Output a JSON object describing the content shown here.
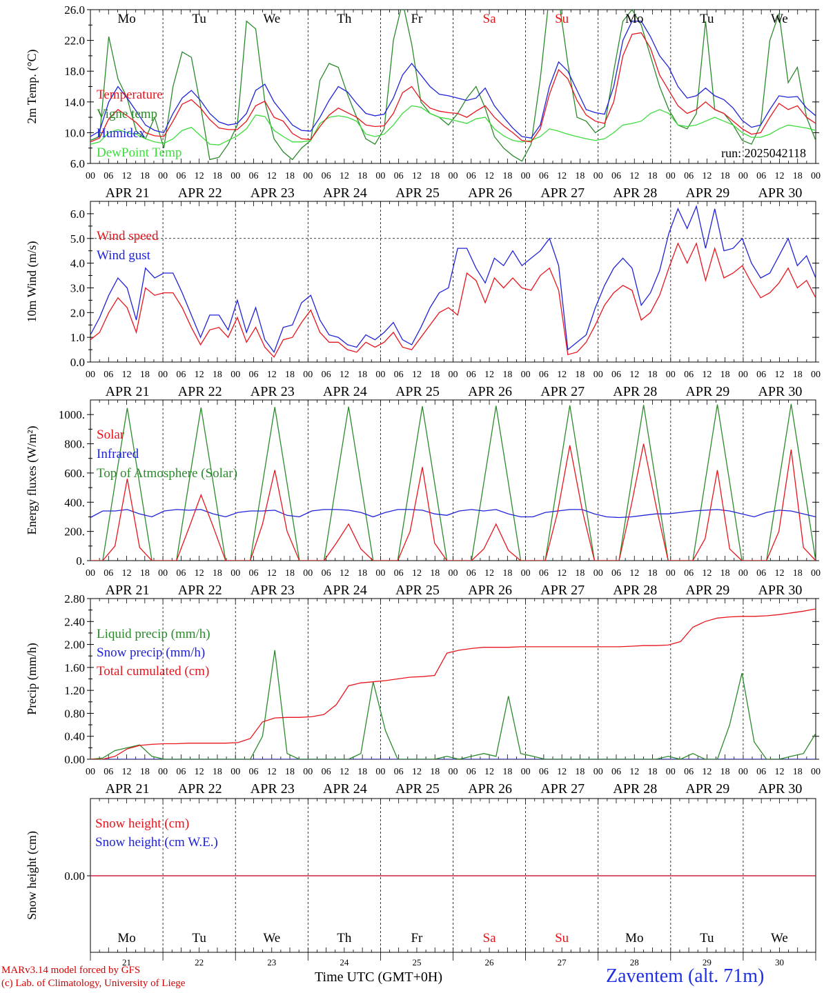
{
  "colors": {
    "red": "#e8141c",
    "green": "#2a8a2a",
    "blue": "#1f22d8",
    "lightgreen": "#3cdc3c",
    "weekday": "#000000",
    "weekend": "#e8141c",
    "location": "#2030e0"
  },
  "days": [
    "Mo",
    "Tu",
    "We",
    "Th",
    "Fr",
    "Sa",
    "Su",
    "Mo",
    "Tu",
    "We"
  ],
  "weekend_flags": [
    false,
    false,
    false,
    false,
    false,
    true,
    true,
    false,
    false,
    false
  ],
  "date_labels": [
    "APR 21",
    "APR 22",
    "APR 23",
    "APR 24",
    "APR 25",
    "APR 26",
    "APR 27",
    "APR 28",
    "APR 29",
    "APR 30"
  ],
  "day_numbers": [
    "21",
    "22",
    "23",
    "24",
    "25",
    "26",
    "27",
    "28",
    "29",
    "30"
  ],
  "hour_ticks": [
    "00",
    "06",
    "12",
    "18"
  ],
  "footer": {
    "model": "MARv3.14 model forced by GFS",
    "copyright": "(c) Lab. of Climatology, University of Liege",
    "time_axis": "Time UTC (GMT+0H)",
    "location": "Zaventem (alt. 71m)"
  },
  "chart_data": [
    {
      "id": "temp",
      "type": "line",
      "ylabel": "2m Temp. (°C)",
      "ylim": [
        6,
        26
      ],
      "yticks": [
        "6.0",
        "10.0",
        "14.0",
        "18.0",
        "22.0",
        "26.0"
      ],
      "run_label": "run: 2025042118",
      "grid": "vertical dashed at day boundaries",
      "x_unit": "hours since APR 21 00 UTC, 3-hourly",
      "series": [
        {
          "name": "Temperature",
          "color": "red",
          "values": [
            8.8,
            9.3,
            11.8,
            13.0,
            12.2,
            11.3,
            10.0,
            9.6,
            9.5,
            11.5,
            13.7,
            14.3,
            13.2,
            11.7,
            10.6,
            10.4,
            10.4,
            11.5,
            13.5,
            14.1,
            12.0,
            11.5,
            9.9,
            9.2,
            9.1,
            10.8,
            12.3,
            13.2,
            12.6,
            12.0,
            11.0,
            10.8,
            10.9,
            12.5,
            15.2,
            16.0,
            14.3,
            13.2,
            12.8,
            12.6,
            12.5,
            12.0,
            12.8,
            13.5,
            12.0,
            10.9,
            10.0,
            9.0,
            8.8,
            10.5,
            15.0,
            18.2,
            17.0,
            14.2,
            12.3,
            11.5,
            11.2,
            14.0,
            20.0,
            22.8,
            23.0,
            21.0,
            17.5,
            15.5,
            13.5,
            12.5,
            13.0,
            14.0,
            13.0,
            12.5,
            11.5,
            10.5,
            9.8,
            10.0,
            12.0,
            13.8,
            13.0,
            13.5,
            12.0,
            11.2
          ]
        },
        {
          "name": "Vigne temp",
          "color": "green",
          "values": [
            9.0,
            9.5,
            22.5,
            17.0,
            14.5,
            10.2,
            9.2,
            12.0,
            8.0,
            16.0,
            20.5,
            19.8,
            13.5,
            6.5,
            6.8,
            8.5,
            11.0,
            24.5,
            23.5,
            14.0,
            9.2,
            7.5,
            6.5,
            8.0,
            9.0,
            16.8,
            19.0,
            18.5,
            15.0,
            12.0,
            9.2,
            8.5,
            10.5,
            22.0,
            27.0,
            21.5,
            14.0,
            12.5,
            12.0,
            11.0,
            12.5,
            14.5,
            16.0,
            13.2,
            9.5,
            8.0,
            7.0,
            6.3,
            8.5,
            17.0,
            28.0,
            27.5,
            19.0,
            12.0,
            11.5,
            10.0,
            10.8,
            18.0,
            24.5,
            26.0,
            24.0,
            20.0,
            16.0,
            13.0,
            11.0,
            10.5,
            12.5,
            24.5,
            13.0,
            12.5,
            11.0,
            9.0,
            8.5,
            11.0,
            22.0,
            25.5,
            16.5,
            18.5,
            12.0,
            9.0
          ]
        },
        {
          "name": "Humidex",
          "color": "blue",
          "values": [
            9.5,
            10.2,
            14.0,
            16.0,
            14.5,
            12.8,
            11.0,
            10.3,
            10.0,
            12.5,
            14.5,
            15.5,
            14.2,
            12.5,
            11.4,
            11.0,
            11.2,
            12.5,
            15.5,
            16.3,
            14.0,
            12.5,
            11.0,
            10.3,
            10.2,
            12.0,
            14.2,
            16.0,
            15.3,
            13.8,
            12.5,
            12.2,
            12.4,
            14.5,
            17.5,
            19.0,
            17.5,
            16.0,
            15.0,
            14.8,
            14.5,
            14.2,
            14.5,
            15.8,
            13.5,
            12.0,
            10.6,
            9.5,
            9.3,
            11.0,
            16.0,
            19.2,
            18.0,
            15.5,
            13.0,
            12.6,
            12.4,
            16.0,
            22.0,
            24.5,
            24.5,
            22.5,
            20.0,
            18.5,
            16.0,
            14.5,
            14.8,
            15.8,
            14.8,
            14.3,
            13.2,
            11.6,
            10.7,
            11.0,
            13.0,
            14.8,
            14.6,
            14.7,
            13.2,
            12.2
          ]
        },
        {
          "name": "DewPoint Temp",
          "color": "lightgreen",
          "values": [
            8.5,
            8.8,
            10.0,
            10.4,
            10.0,
            9.8,
            9.2,
            8.8,
            8.6,
            9.2,
            10.3,
            10.7,
            9.6,
            8.5,
            8.4,
            9.0,
            9.6,
            10.5,
            12.3,
            12.1,
            10.3,
            9.5,
            8.8,
            8.8,
            9.0,
            11.2,
            12.0,
            12.2,
            12.0,
            11.5,
            9.8,
            9.5,
            9.8,
            11.0,
            12.5,
            13.5,
            13.3,
            12.5,
            12.0,
            11.8,
            11.5,
            11.2,
            11.8,
            12.0,
            10.5,
            9.6,
            9.0,
            8.8,
            9.0,
            9.5,
            10.5,
            10.2,
            9.8,
            9.5,
            9.2,
            9.0,
            9.2,
            10.0,
            11.0,
            11.2,
            11.5,
            12.5,
            13.0,
            12.5,
            11.0,
            10.8,
            11.0,
            11.5,
            12.0,
            11.5,
            11.0,
            10.0,
            9.4,
            9.4,
            9.8,
            10.5,
            11.0,
            10.8,
            10.6,
            10.3
          ]
        }
      ]
    },
    {
      "id": "wind",
      "type": "line",
      "ylabel": "10m Wind (m/s)",
      "ylim": [
        0,
        6.5
      ],
      "yticks": [
        "0.0",
        "1.0",
        "2.0",
        "3.0",
        "4.0",
        "5.0",
        "6.0"
      ],
      "reference_line": 5.0,
      "x_unit": "hours since APR 21 00 UTC, 3-hourly",
      "series": [
        {
          "name": "Wind speed",
          "color": "red",
          "values": [
            0.9,
            1.2,
            2.0,
            2.6,
            2.2,
            1.2,
            3.0,
            2.7,
            2.8,
            2.8,
            2.2,
            1.4,
            0.7,
            1.3,
            1.4,
            1.0,
            1.8,
            0.8,
            1.4,
            0.6,
            0.2,
            0.9,
            1.0,
            1.6,
            2.1,
            1.2,
            0.8,
            0.8,
            0.5,
            0.4,
            0.8,
            0.6,
            0.8,
            1.2,
            0.6,
            0.5,
            1.0,
            1.5,
            2.0,
            2.2,
            1.9,
            3.6,
            3.3,
            2.4,
            3.4,
            3.0,
            3.4,
            3.0,
            2.9,
            3.5,
            3.8,
            2.9,
            0.3,
            0.4,
            0.8,
            1.5,
            2.3,
            2.8,
            3.1,
            2.9,
            1.7,
            2.0,
            2.7,
            3.8,
            4.8,
            4.0,
            4.8,
            3.3,
            4.6,
            3.4,
            3.6,
            3.9,
            3.2,
            2.6,
            2.8,
            3.2,
            3.8,
            3.0,
            3.3,
            2.6
          ]
        },
        {
          "name": "Wind gust",
          "color": "blue",
          "values": [
            1.1,
            1.8,
            2.7,
            3.4,
            3.0,
            1.7,
            3.8,
            3.4,
            3.6,
            3.6,
            2.8,
            1.9,
            1.0,
            1.9,
            1.9,
            1.3,
            2.5,
            1.2,
            2.2,
            0.9,
            0.4,
            1.4,
            1.5,
            2.4,
            2.7,
            1.7,
            1.1,
            1.0,
            0.7,
            0.6,
            1.1,
            0.9,
            1.2,
            1.6,
            0.9,
            0.7,
            1.4,
            2.2,
            2.8,
            3.0,
            4.6,
            4.6,
            3.8,
            3.2,
            4.2,
            3.9,
            4.5,
            3.9,
            4.2,
            4.5,
            5.0,
            3.9,
            0.5,
            0.8,
            1.1,
            2.2,
            3.1,
            3.8,
            4.2,
            3.8,
            2.3,
            2.8,
            3.7,
            5.2,
            6.2,
            5.4,
            6.3,
            4.6,
            6.2,
            4.5,
            4.6,
            5.0,
            4.0,
            3.4,
            3.6,
            4.3,
            5.0,
            3.9,
            4.3,
            3.4
          ]
        }
      ]
    },
    {
      "id": "energy",
      "type": "line",
      "ylabel": "Energy fluxes (W/m²)",
      "ylim": [
        0,
        1100
      ],
      "yticks": [
        "0.",
        "200.",
        "400.",
        "600.",
        "800.",
        "1000."
      ],
      "x_unit": "hours since APR 21 00 UTC, 3-hourly",
      "series": [
        {
          "name": "Solar",
          "color": "red",
          "values": [
            0,
            0,
            100,
            560,
            90,
            0,
            0,
            0,
            220,
            450,
            230,
            0,
            0,
            0,
            250,
            620,
            200,
            0,
            0,
            0,
            120,
            250,
            80,
            0,
            0,
            0,
            200,
            640,
            120,
            0,
            0,
            0,
            80,
            250,
            70,
            0,
            0,
            0,
            330,
            790,
            350,
            0,
            0,
            0,
            380,
            800,
            380,
            0,
            0,
            0,
            150,
            620,
            80,
            0,
            0,
            0,
            200,
            760,
            90,
            0
          ]
        },
        {
          "name": "Infrared",
          "color": "blue",
          "values": [
            295,
            340,
            340,
            350,
            320,
            300,
            340,
            350,
            345,
            350,
            320,
            300,
            330,
            340,
            340,
            345,
            310,
            300,
            340,
            350,
            350,
            345,
            330,
            300,
            330,
            350,
            350,
            345,
            320,
            310,
            340,
            350,
            340,
            350,
            320,
            300,
            300,
            330,
            340,
            350,
            350,
            320,
            300,
            295,
            300,
            310,
            320,
            320,
            330,
            340,
            345,
            350,
            340,
            320,
            300,
            330,
            345,
            340,
            320,
            300
          ]
        },
        {
          "name": "Top of Atmosphere (Solar)",
          "color": "green",
          "values": [
            0,
            0,
            525,
            1045,
            525,
            0,
            0,
            0,
            527,
            1048,
            527,
            0,
            0,
            0,
            528,
            1051,
            528,
            0,
            0,
            0,
            530,
            1054,
            530,
            0,
            0,
            0,
            531,
            1057,
            531,
            0,
            0,
            0,
            532,
            1060,
            532,
            0,
            0,
            0,
            534,
            1063,
            534,
            0,
            0,
            0,
            535,
            1066,
            535,
            0,
            0,
            0,
            537,
            1069,
            537,
            0,
            0,
            0,
            538,
            1072,
            538,
            0
          ]
        }
      ]
    },
    {
      "id": "precip",
      "type": "line",
      "ylabel": "Precip (mm/h)",
      "ylim": [
        0,
        2.8
      ],
      "yticks": [
        "0.00",
        "0.40",
        "0.80",
        "1.20",
        "1.60",
        "2.00",
        "2.40",
        "2.80"
      ],
      "x_unit": "hours since APR 21 00 UTC, 3-hourly",
      "series": [
        {
          "name": "Liquid precip (mm/h)",
          "color": "green",
          "values": [
            0,
            0.02,
            0.15,
            0.2,
            0.25,
            0.05,
            0,
            0,
            0,
            0,
            0,
            0,
            0,
            0,
            0.4,
            1.9,
            0.1,
            0,
            0,
            0,
            0,
            0,
            0.1,
            1.35,
            0.5,
            0,
            0,
            0,
            0,
            0.05,
            0,
            0.05,
            0.1,
            0.05,
            1.1,
            0.1,
            0.05,
            0,
            0,
            0,
            0,
            0,
            0,
            0,
            0,
            0,
            0,
            0.05,
            0,
            0.1,
            0,
            0,
            0.6,
            1.5,
            0.3,
            0,
            0,
            0.05,
            0.1,
            0.45
          ]
        },
        {
          "name": "Snow precip (mm/h)",
          "color": "blue",
          "values": [
            0,
            0,
            0,
            0,
            0,
            0,
            0,
            0,
            0,
            0,
            0,
            0,
            0,
            0,
            0,
            0,
            0,
            0,
            0,
            0,
            0,
            0,
            0,
            0,
            0,
            0,
            0,
            0,
            0,
            0,
            0,
            0,
            0,
            0,
            0,
            0,
            0,
            0,
            0,
            0,
            0,
            0,
            0,
            0,
            0,
            0,
            0,
            0,
            0,
            0,
            0,
            0,
            0,
            0,
            0,
            0,
            0,
            0,
            0,
            0
          ]
        },
        {
          "name": "Total cumulated (cm)",
          "color": "red",
          "values": [
            0,
            0,
            0.05,
            0.18,
            0.24,
            0.26,
            0.27,
            0.27,
            0.28,
            0.28,
            0.28,
            0.28,
            0.29,
            0.36,
            0.65,
            0.72,
            0.73,
            0.73,
            0.74,
            0.78,
            0.95,
            1.28,
            1.33,
            1.35,
            1.37,
            1.4,
            1.43,
            1.44,
            1.46,
            1.85,
            1.9,
            1.93,
            1.95,
            1.95,
            1.95,
            1.96,
            1.96,
            1.96,
            1.96,
            1.96,
            1.96,
            1.96,
            1.96,
            1.96,
            1.97,
            1.98,
            1.98,
            1.99,
            2.05,
            2.3,
            2.4,
            2.46,
            2.48,
            2.49,
            2.49,
            2.5,
            2.52,
            2.55,
            2.58,
            2.62
          ]
        }
      ]
    },
    {
      "id": "snow",
      "type": "line",
      "ylabel": "Snow height (cm)",
      "yticks": [
        "0.00"
      ],
      "x_unit": "hours since APR 21 00 UTC",
      "series": [
        {
          "name": "Snow height (cm)",
          "color": "red",
          "values": [
            0,
            0
          ]
        },
        {
          "name": "Snow height (cm W.E.)",
          "color": "blue",
          "values": [
            0,
            0
          ]
        }
      ]
    }
  ]
}
